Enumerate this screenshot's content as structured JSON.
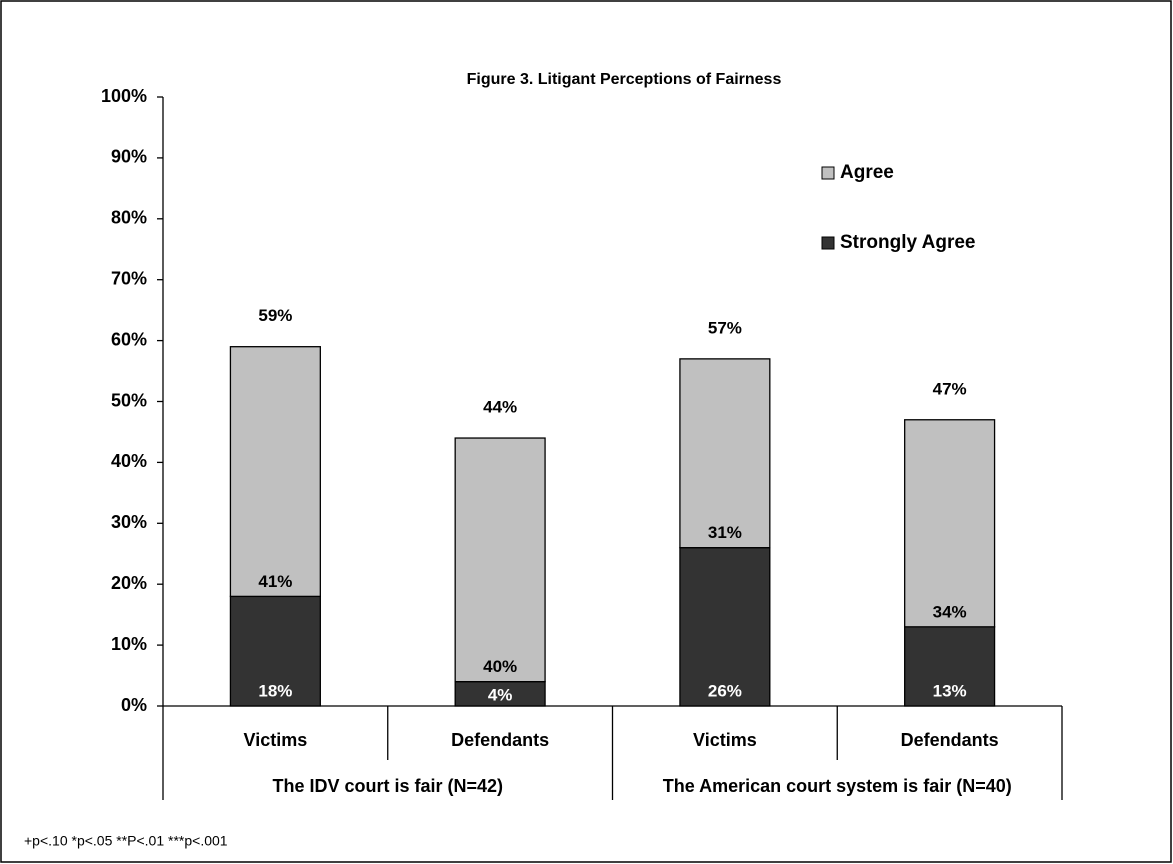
{
  "chart_data": {
    "type": "stacked-bar",
    "title": "Figure 3. Litigant Perceptions of Fairness",
    "categories": [
      "Victims",
      "Defendants",
      "Victims",
      "Defendants"
    ],
    "groups": [
      {
        "label": "The IDV court is fair (N=42)",
        "span": 2
      },
      {
        "label": "The American court system is fair (N=40)",
        "span": 2
      }
    ],
    "series": [
      {
        "name": "Strongly Agree",
        "color": "#333333",
        "values": [
          18,
          4,
          26,
          13
        ],
        "value_labels": [
          "18%",
          "4%",
          "26%",
          "13%"
        ]
      },
      {
        "name": "Agree",
        "color": "#c0c0c0",
        "values": [
          41,
          40,
          31,
          34
        ],
        "value_labels": [
          "41%",
          "40%",
          "31%",
          "34%"
        ]
      }
    ],
    "totals": [
      59,
      44,
      57,
      47
    ],
    "total_labels": [
      "59%",
      "44%",
      "57%",
      "47%"
    ],
    "ylim": [
      0,
      100
    ],
    "yticks": [
      {
        "value": 0,
        "label": "0%"
      },
      {
        "value": 10,
        "label": "10%"
      },
      {
        "value": 20,
        "label": "20%"
      },
      {
        "value": 30,
        "label": "30%"
      },
      {
        "value": 40,
        "label": "40%"
      },
      {
        "value": 50,
        "label": "50%"
      },
      {
        "value": 60,
        "label": "60%"
      },
      {
        "value": 70,
        "label": "70%"
      },
      {
        "value": 80,
        "label": "80%"
      },
      {
        "value": 90,
        "label": "90%"
      },
      {
        "value": 100,
        "label": "100%"
      }
    ],
    "grid": false,
    "legend": "right",
    "footnote": "+p<.10 *p<.05 **P<.01 ***p<.001"
  }
}
